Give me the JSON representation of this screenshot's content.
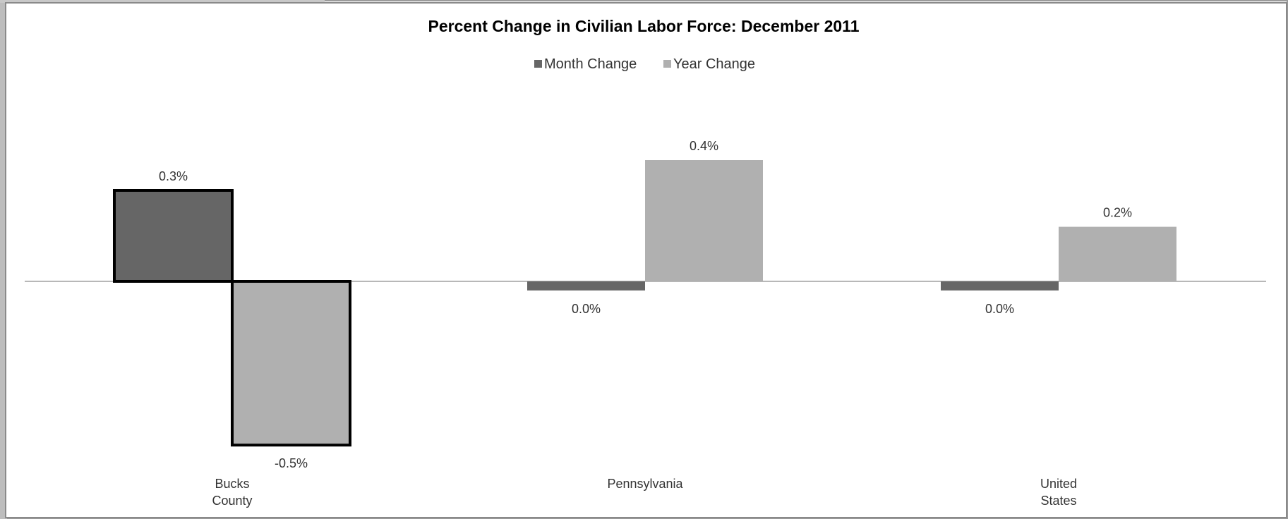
{
  "chart_data": {
    "type": "bar",
    "title": "Percent Change in Civilian Labor Force: December 2011",
    "categories": [
      [
        "Bucks",
        "County"
      ],
      [
        "Pennsylvania"
      ],
      [
        "United",
        "States"
      ]
    ],
    "series": [
      {
        "name": "Month Change",
        "values": [
          0.3,
          -0.03,
          -0.03
        ],
        "labels": [
          "0.3%",
          "0.0%",
          "0.0%"
        ],
        "color": "#666666"
      },
      {
        "name": "Year Change",
        "values": [
          -0.54,
          0.4,
          0.18
        ],
        "labels": [
          "-0.5%",
          "0.4%",
          "0.2%"
        ],
        "color": "#b0b0b0"
      }
    ],
    "highlighted_category": "Bucks County",
    "legend_position": "top",
    "grid": false,
    "ylim": [
      -0.6,
      0.6
    ]
  }
}
